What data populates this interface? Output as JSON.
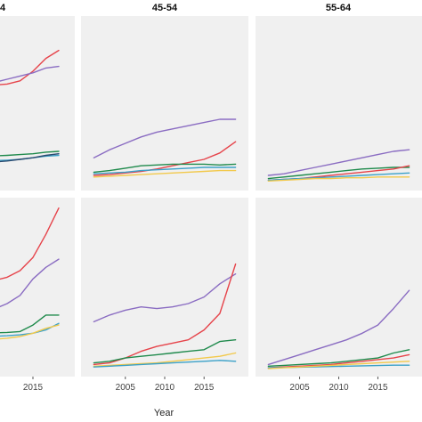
{
  "chart_data": {
    "type": "line",
    "xlabel": "Year",
    "ylabel": "",
    "xlim": [
      2000.5,
      2019.5
    ],
    "ylim_top_row": [
      0,
      100
    ],
    "ylim_bottom_row": [
      0,
      100
    ],
    "panel_background": "#f0f0f0",
    "grid": false,
    "legend": "none",
    "facets": {
      "columns": [
        "4",
        "45-54",
        "55-64"
      ],
      "rows": 2
    },
    "x_ticks": [
      2005,
      2010,
      2015
    ],
    "x_tick_labels_shown": {
      "col0": [
        "2015"
      ],
      "col1": [
        "2005",
        "2010",
        "2015"
      ],
      "col2": [
        "2005",
        "2010",
        "2015"
      ]
    },
    "series_colors": {
      "red": "#e6434a",
      "purple": "#8a6cc2",
      "green": "#1f8a4c",
      "teal": "#3ba1c8",
      "yellow": "#f2c94c",
      "navy": "#2a4a6f"
    },
    "panels": [
      {
        "row": 0,
        "col": 0,
        "series": [
          {
            "color": "red",
            "x": [
              2001,
              2005,
              2008,
              2011,
              2013,
              2015,
              2017,
              2019
            ],
            "y": [
              60,
              60,
              61,
              62,
              64,
              70,
              78,
              83
            ]
          },
          {
            "color": "purple",
            "x": [
              2001,
              2005,
              2008,
              2011,
              2013,
              2015,
              2017,
              2019
            ],
            "y": [
              55,
              58,
              62,
              65,
              67,
              69,
              72,
              73
            ]
          },
          {
            "color": "green",
            "x": [
              2001,
              2005,
              2008,
              2011,
              2013,
              2015,
              2017,
              2019
            ],
            "y": [
              17,
              17,
              17,
              17.5,
              18,
              18.5,
              19.5,
              20
            ]
          },
          {
            "color": "teal",
            "x": [
              2001,
              2005,
              2008,
              2011,
              2013,
              2015,
              2017,
              2019
            ],
            "y": [
              13,
              13.5,
              14,
              14.5,
              15,
              16,
              17,
              17.5
            ]
          },
          {
            "color": "navy",
            "x": [
              2001,
              2005,
              2008,
              2011,
              2013,
              2015,
              2017,
              2019
            ],
            "y": [
              12,
              12.5,
              13,
              14,
              15,
              16,
              17.5,
              18.5
            ]
          }
        ]
      },
      {
        "row": 0,
        "col": 1,
        "series": [
          {
            "color": "purple",
            "x": [
              2001,
              2003,
              2005,
              2007,
              2009,
              2011,
              2013,
              2015,
              2017,
              2019
            ],
            "y": [
              16,
              21,
              25,
              29,
              32,
              34,
              36,
              38,
              40,
              40
            ]
          },
          {
            "color": "red",
            "x": [
              2001,
              2003,
              2005,
              2007,
              2009,
              2011,
              2013,
              2015,
              2017,
              2019
            ],
            "y": [
              5,
              5.5,
              6.5,
              7.5,
              9,
              11,
              13,
              15,
              19,
              26
            ]
          },
          {
            "color": "green",
            "x": [
              2001,
              2003,
              2005,
              2007,
              2009,
              2011,
              2013,
              2015,
              2017,
              2019
            ],
            "y": [
              7,
              8,
              9.5,
              11,
              11.5,
              12,
              12,
              12,
              11.5,
              12
            ]
          },
          {
            "color": "teal",
            "x": [
              2001,
              2003,
              2005,
              2007,
              2009,
              2011,
              2013,
              2015,
              2017,
              2019
            ],
            "y": [
              6,
              6.5,
              7,
              8,
              8.5,
              9,
              9.5,
              10,
              10,
              10
            ]
          },
          {
            "color": "yellow",
            "x": [
              2001,
              2003,
              2005,
              2007,
              2009,
              2011,
              2013,
              2015,
              2017,
              2019
            ],
            "y": [
              4,
              4.5,
              5,
              5.5,
              6,
              6.5,
              7,
              7.5,
              8,
              8
            ]
          }
        ]
      },
      {
        "row": 0,
        "col": 2,
        "series": [
          {
            "color": "purple",
            "x": [
              2001,
              2003,
              2005,
              2007,
              2009,
              2011,
              2013,
              2015,
              2017,
              2019
            ],
            "y": [
              5,
              6,
              8,
              10,
              12,
              14,
              16,
              18,
              20,
              21
            ]
          },
          {
            "color": "green",
            "x": [
              2001,
              2003,
              2005,
              2007,
              2009,
              2011,
              2013,
              2015,
              2017,
              2019
            ],
            "y": [
              3,
              4,
              5,
              6,
              7,
              8,
              9,
              9.5,
              10,
              10
            ]
          },
          {
            "color": "red",
            "x": [
              2001,
              2003,
              2005,
              2007,
              2009,
              2011,
              2013,
              2015,
              2017,
              2019
            ],
            "y": [
              2,
              2.5,
              3,
              4,
              5,
              6,
              7,
              8,
              9,
              11
            ]
          },
          {
            "color": "teal",
            "x": [
              2001,
              2003,
              2005,
              2007,
              2009,
              2011,
              2013,
              2015,
              2017,
              2019
            ],
            "y": [
              2,
              2.5,
              3,
              3.5,
              4,
              4.5,
              5,
              5.5,
              6,
              6.5
            ]
          },
          {
            "color": "yellow",
            "x": [
              2001,
              2003,
              2005,
              2007,
              2009,
              2011,
              2013,
              2015,
              2017,
              2019
            ],
            "y": [
              1.5,
              2,
              2.5,
              3,
              3,
              3.5,
              3.5,
              4,
              4,
              4
            ]
          }
        ]
      },
      {
        "row": 1,
        "col": 0,
        "series": [
          {
            "color": "red",
            "x": [
              2001,
              2005,
              2008,
              2011,
              2013,
              2015,
              2017,
              2019
            ],
            "y": [
              48,
              50,
              53,
              56,
              60,
              68,
              82,
              98
            ]
          },
          {
            "color": "purple",
            "x": [
              2001,
              2005,
              2008,
              2011,
              2013,
              2015,
              2017,
              2019
            ],
            "y": [
              30,
              32,
              35,
              40,
              45,
              55,
              62,
              67
            ]
          },
          {
            "color": "green",
            "x": [
              2001,
              2005,
              2008,
              2011,
              2013,
              2015,
              2017,
              2019
            ],
            "y": [
              21,
              21.5,
              22,
              22.5,
              23,
              27,
              33,
              33
            ]
          },
          {
            "color": "teal",
            "x": [
              2001,
              2005,
              2008,
              2011,
              2013,
              2015,
              2017,
              2019
            ],
            "y": [
              19,
              19.5,
              20,
              20.5,
              21,
              22,
              24,
              28
            ]
          },
          {
            "color": "yellow",
            "x": [
              2001,
              2005,
              2008,
              2011,
              2013,
              2015,
              2017,
              2019
            ],
            "y": [
              17,
              17.5,
              18,
              19,
              20,
              22,
              25,
              27
            ]
          }
        ]
      },
      {
        "row": 1,
        "col": 1,
        "series": [
          {
            "color": "purple",
            "x": [
              2001,
              2003,
              2005,
              2007,
              2009,
              2011,
              2013,
              2015,
              2017,
              2019
            ],
            "y": [
              29,
              33,
              36,
              38,
              37,
              38,
              40,
              44,
              52,
              58
            ]
          },
          {
            "color": "red",
            "x": [
              2001,
              2003,
              2005,
              2007,
              2009,
              2011,
              2013,
              2015,
              2017,
              2019
            ],
            "y": [
              3,
              4,
              7,
              11,
              14,
              16,
              18,
              24,
              34,
              64
            ]
          },
          {
            "color": "green",
            "x": [
              2001,
              2003,
              2005,
              2007,
              2009,
              2011,
              2013,
              2015,
              2017,
              2019
            ],
            "y": [
              4,
              5,
              7,
              8,
              9,
              10,
              11,
              12,
              17,
              18
            ]
          },
          {
            "color": "yellow",
            "x": [
              2001,
              2003,
              2005,
              2007,
              2009,
              2011,
              2013,
              2015,
              2017,
              2019
            ],
            "y": [
              2,
              2.5,
              3,
              3.5,
              4,
              5,
              6,
              7,
              8,
              10
            ]
          },
          {
            "color": "teal",
            "x": [
              2001,
              2003,
              2005,
              2007,
              2009,
              2011,
              2013,
              2015,
              2017,
              2019
            ],
            "y": [
              1.5,
              2,
              2.5,
              3,
              3.5,
              4,
              4.5,
              5,
              5.5,
              5
            ]
          }
        ]
      },
      {
        "row": 1,
        "col": 2,
        "series": [
          {
            "color": "purple",
            "x": [
              2001,
              2003,
              2005,
              2007,
              2009,
              2011,
              2013,
              2015,
              2017,
              2019
            ],
            "y": [
              3,
              6,
              9,
              12,
              15,
              18,
              22,
              27,
              37,
              48
            ]
          },
          {
            "color": "green",
            "x": [
              2001,
              2003,
              2005,
              2007,
              2009,
              2011,
              2013,
              2015,
              2017,
              2019
            ],
            "y": [
              2,
              2.5,
              3,
              3.5,
              4,
              5,
              6,
              7,
              10,
              12
            ]
          },
          {
            "color": "red",
            "x": [
              2001,
              2003,
              2005,
              2007,
              2009,
              2011,
              2013,
              2015,
              2017,
              2019
            ],
            "y": [
              1,
              1.5,
              2,
              2.5,
              3,
              4,
              5,
              6,
              7,
              9
            ]
          },
          {
            "color": "teal",
            "x": [
              2001,
              2003,
              2005,
              2007,
              2009,
              2011,
              2013,
              2015,
              2017,
              2019
            ],
            "y": [
              1,
              1.2,
              1.4,
              1.6,
              1.8,
              2,
              2.2,
              2.4,
              2.6,
              2.6
            ]
          },
          {
            "color": "yellow",
            "x": [
              2001,
              2003,
              2005,
              2007,
              2009,
              2011,
              2013,
              2015,
              2017,
              2019
            ],
            "y": [
              0.5,
              1,
              1.5,
              2,
              2.5,
              3,
              3.5,
              4,
              4.5,
              5
            ]
          }
        ]
      }
    ]
  }
}
